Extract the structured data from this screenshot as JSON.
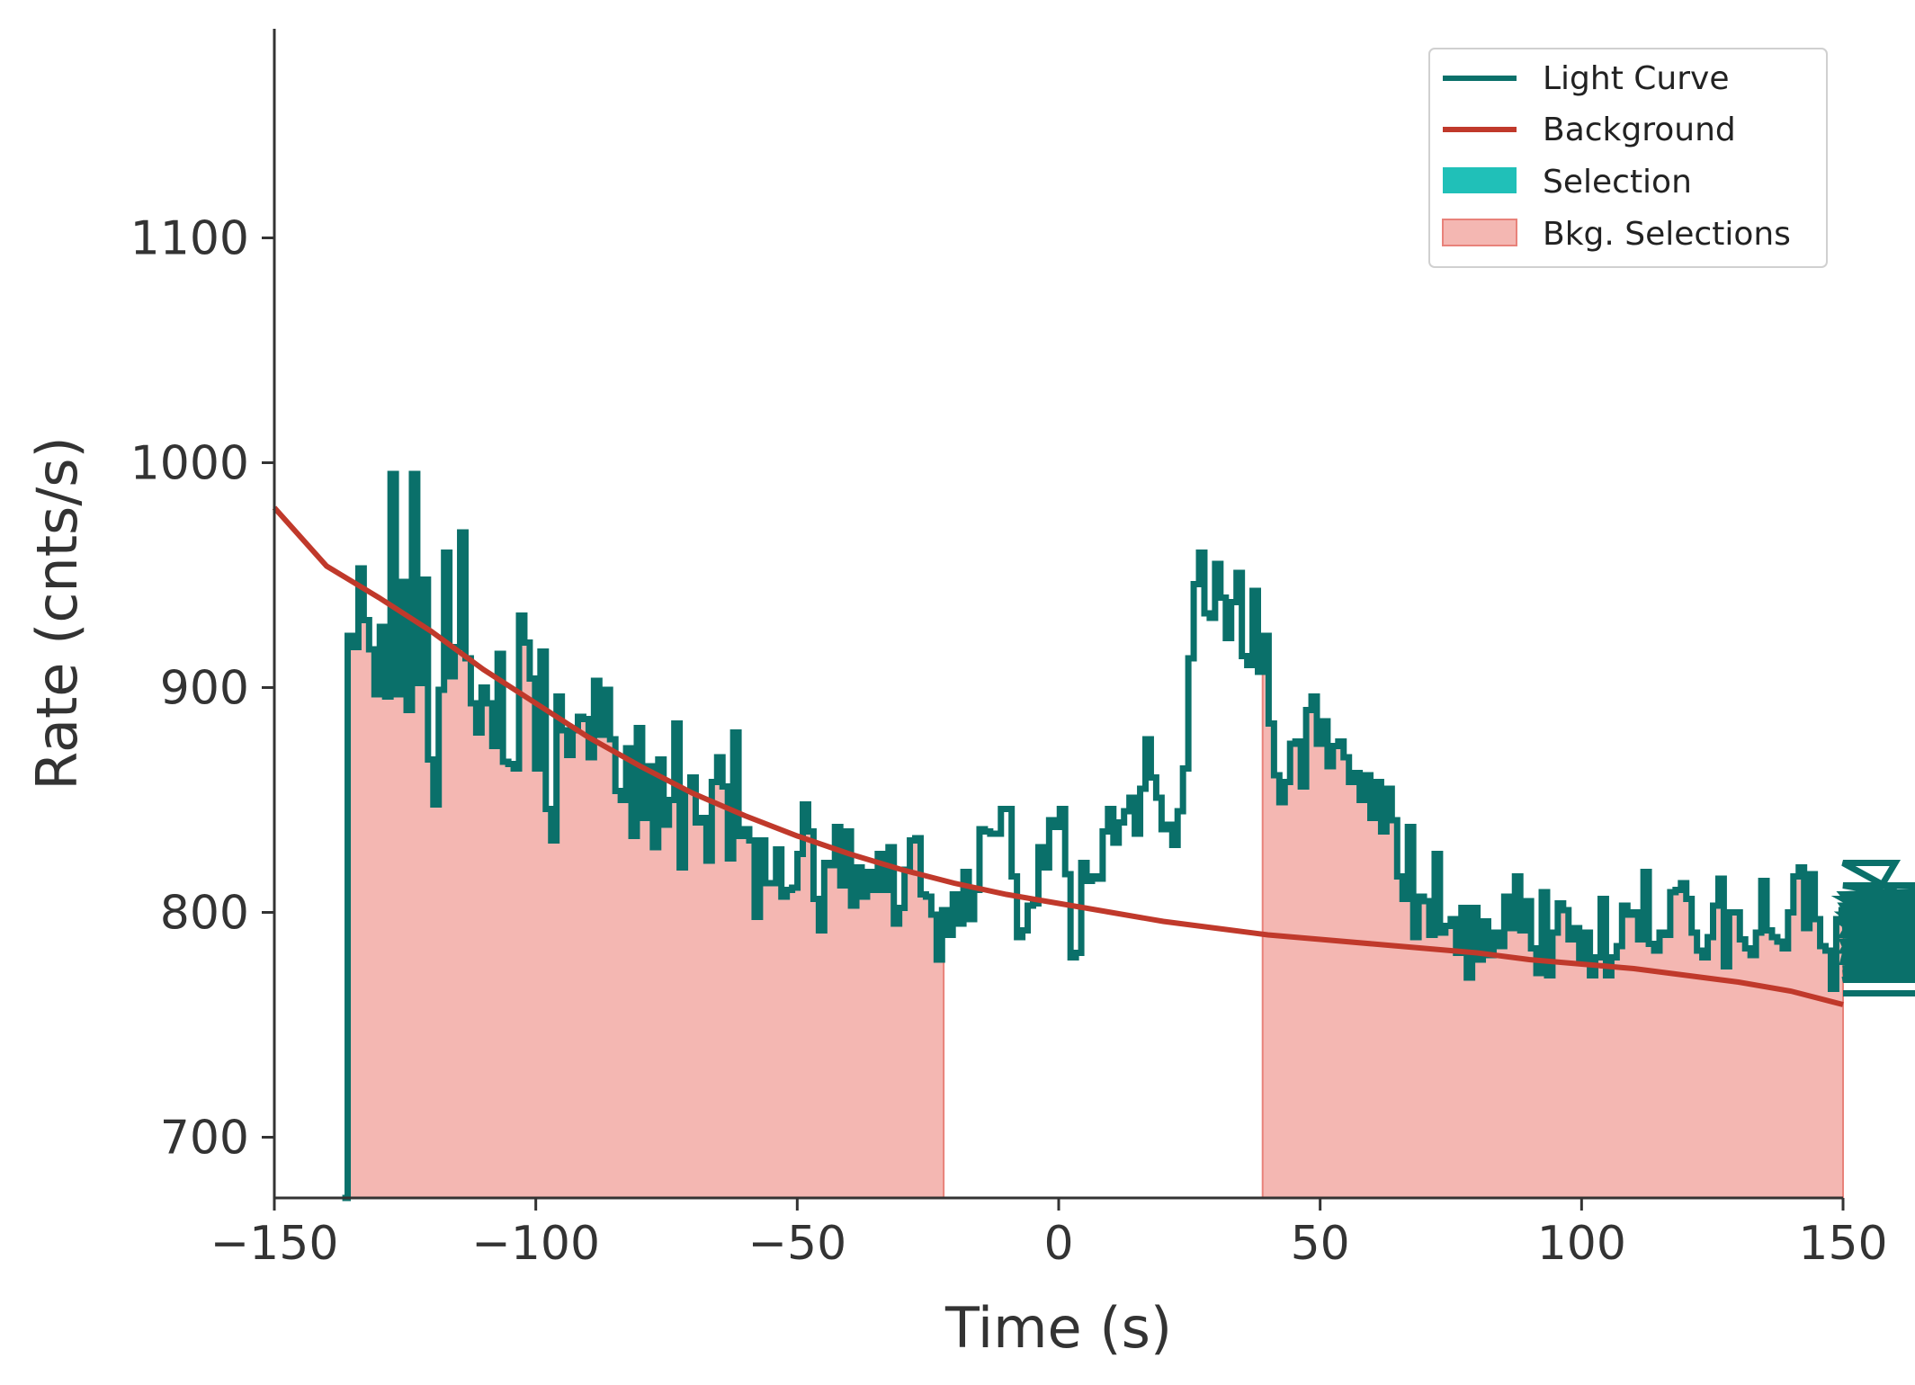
{
  "chart_data": {
    "type": "line",
    "xlabel": "Time (s)",
    "ylabel": "Rate (cnts/s)",
    "xlim": [
      -150,
      150
    ],
    "ylim": [
      673,
      1193
    ],
    "xticks": [
      -150,
      -100,
      -50,
      0,
      50,
      100,
      150
    ],
    "xtick_labels": [
      "−150",
      "−100",
      "−50",
      "0",
      "50",
      "100",
      "150"
    ],
    "yticks": [
      700,
      800,
      900,
      1000,
      1100
    ],
    "ytick_labels": [
      "700",
      "800",
      "900",
      "1000",
      "1100"
    ],
    "grid": false,
    "legend_position": "top-right",
    "colors": {
      "light_curve": "#0a706a",
      "background": "#c0392b",
      "selection": "#20c0b8",
      "bkg_fill": "#f4b7b2",
      "bkg_edge": "#e8827a",
      "axis": "#333333"
    },
    "legend": [
      {
        "label": "Light Curve",
        "kind": "line",
        "color": "#0a706a"
      },
      {
        "label": "Background",
        "kind": "line",
        "color": "#c0392b"
      },
      {
        "label": "Selection",
        "kind": "patch",
        "color": "#20c0b8"
      },
      {
        "label": "Bkg. Selections",
        "kind": "patch",
        "color": "#f4b7b2"
      }
    ],
    "light_curve": {
      "name": "Light Curve",
      "bin_width": 1.024,
      "start": -137,
      "values": [
        660,
        923,
        918,
        953,
        930,
        917,
        897,
        927,
        896,
        995,
        897,
        947,
        890,
        995,
        902,
        948,
        868,
        848,
        899,
        960,
        905,
        918,
        969,
        913,
        893,
        880,
        900,
        893,
        874,
        915,
        867,
        866,
        864,
        932,
        920,
        904,
        864,
        916,
        846,
        832,
        896,
        881,
        870,
        881,
        887,
        886,
        869,
        903,
        879,
        899,
        877,
        854,
        850,
        873,
        834,
        882,
        842,
        865,
        829,
        868,
        839,
        850,
        884,
        820,
        854,
        860,
        840,
        842,
        823,
        858,
        869,
        856,
        824,
        880,
        834,
        837,
        832,
        798,
        832,
        813,
        813,
        828,
        807,
        810,
        811,
        826,
        848,
        836,
        806,
        792,
        822,
        821,
        838,
        812,
        836,
        803,
        820,
        807,
        818,
        810,
        826,
        810,
        829,
        795,
        802,
        819,
        832,
        833,
        808,
        807,
        799,
        779,
        801,
        790,
        808,
        795,
        818,
        797,
        810,
        837,
        836,
        835,
        835,
        846,
        846,
        816,
        789,
        792,
        803,
        804,
        829,
        820,
        841,
        838,
        846,
        817,
        780,
        782,
        822,
        814,
        816,
        815,
        836,
        846,
        831,
        840,
        845,
        851,
        835,
        855,
        877,
        860,
        851,
        837,
        839,
        830,
        845,
        864,
        913,
        946,
        960,
        933,
        931,
        955,
        940,
        922,
        938,
        951,
        914,
        910,
        943,
        907,
        923,
        884,
        861,
        849,
        858,
        875,
        876,
        856,
        890,
        896,
        875,
        885,
        865,
        874,
        876,
        869,
        858,
        862,
        850,
        861,
        842,
        858,
        836,
        855,
        841,
        816,
        806,
        838,
        789,
        807,
        805,
        790,
        826,
        791,
        794,
        797,
        782,
        802,
        771,
        802,
        779,
        796,
        781,
        791,
        785,
        807,
        793,
        816,
        792,
        805,
        784,
        773,
        809,
        772,
        791,
        804,
        801,
        788,
        793,
        779,
        791,
        772,
        780,
        806,
        772,
        780,
        785,
        803,
        799,
        800,
        788,
        818,
        786,
        783,
        791,
        790,
        809,
        810,
        813,
        806,
        791,
        783,
        780,
        789,
        803,
        815,
        776,
        800,
        800,
        788,
        784,
        781,
        791,
        814,
        792,
        789,
        787,
        784,
        800,
        816,
        820,
        793,
        817,
        797,
        785,
        783,
        766,
        797,
        801,
        787,
        778,
        803,
        790,
        808,
        806,
        797,
        799,
        783,
        822,
        808,
        775,
        781,
        795,
        770,
        788,
        786,
        783,
        792,
        800,
        791,
        808,
        779,
        773,
        787,
        802,
        792,
        806,
        794,
        782,
        793,
        794,
        781,
        784,
        787,
        795,
        804,
        780,
        775,
        793,
        808,
        812,
        795,
        770,
        779,
        773,
        792,
        786,
        770,
        780,
        798,
        801,
        793,
        783,
        794,
        790,
        787,
        795,
        787,
        778,
        764
      ]
    },
    "background_model": {
      "name": "Background",
      "x": [
        -150,
        -140,
        -130,
        -120,
        -110,
        -100,
        -90,
        -80,
        -70,
        -60,
        -50,
        -40,
        -30,
        -20,
        -10,
        0,
        10,
        20,
        30,
        40,
        50,
        60,
        70,
        80,
        90,
        100,
        110,
        120,
        130,
        140,
        150
      ],
      "y": [
        980,
        954,
        940,
        925,
        908,
        893,
        878,
        865,
        853,
        843,
        834,
        826,
        819,
        813,
        808,
        804,
        800,
        796,
        793,
        790,
        788,
        786,
        784,
        782,
        779,
        777,
        775,
        772,
        769,
        765,
        759
      ]
    },
    "bkg_selections": [
      [
        -136,
        -22
      ],
      [
        39,
        150
      ]
    ]
  }
}
